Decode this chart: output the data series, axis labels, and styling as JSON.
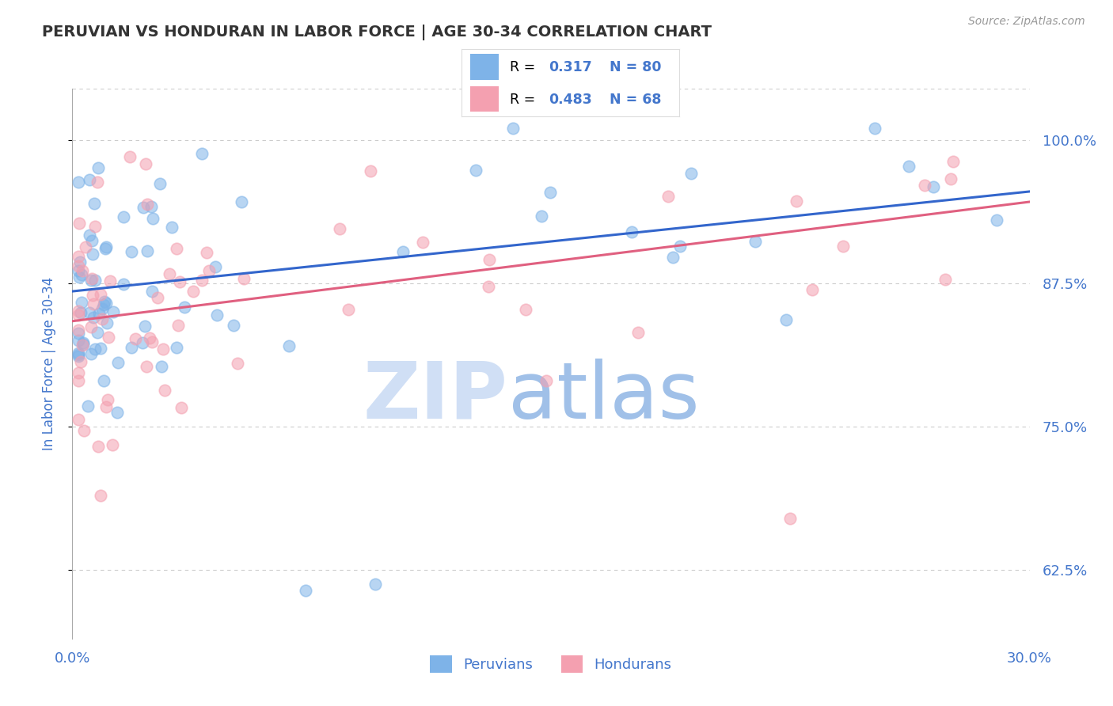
{
  "title": "PERUVIAN VS HONDURAN IN LABOR FORCE | AGE 30-34 CORRELATION CHART",
  "source": "Source: ZipAtlas.com",
  "ylabel_labels": [
    "100.0%",
    "87.5%",
    "75.0%",
    "62.5%"
  ],
  "ylabel_values": [
    1.0,
    0.875,
    0.75,
    0.625
  ],
  "ylabel_axis_label": "In Labor Force | Age 30-34",
  "blue_color": "#7eb3e8",
  "pink_color": "#f4a0b0",
  "blue_line_color": "#3366cc",
  "pink_line_color": "#e06080",
  "tick_color": "#4477cc",
  "title_color": "#333333",
  "watermark_zip_color": "#d0dff5",
  "watermark_atlas_color": "#a0c0e8",
  "background_color": "#ffffff",
  "grid_color": "#cccccc",
  "xmin": 0.0,
  "xmax": 0.3,
  "ymin": 0.565,
  "ymax": 1.045,
  "blue_line_x0": 0.0,
  "blue_line_y0": 0.868,
  "blue_line_x1": 0.3,
  "blue_line_y1": 0.955,
  "pink_line_x0": 0.0,
  "pink_line_y0": 0.842,
  "pink_line_x1": 0.3,
  "pink_line_y1": 0.946
}
